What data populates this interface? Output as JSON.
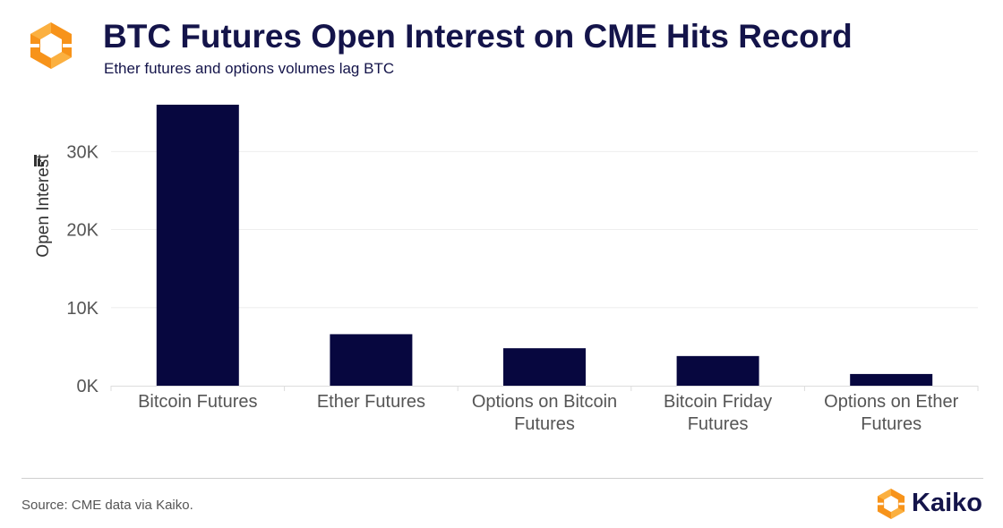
{
  "header": {
    "title": "BTC Futures Open Interest on CME Hits Record",
    "subtitle": "Ether futures and options volumes lag BTC",
    "logo_icon": "kaiko-hexagon-logo-icon"
  },
  "footer": {
    "source": "Source: CME data via Kaiko.",
    "brand": "Kaiko"
  },
  "colors": {
    "bar": "#07073f",
    "title": "#14144a",
    "brand_orange": "#f7931a",
    "brand_orange_light": "#fbb040",
    "grid": "#eeeeee",
    "tick": "#555555"
  },
  "chart_data": {
    "type": "bar",
    "title": "BTC Futures Open Interest on CME Hits Record",
    "subtitle": "Ether futures and options volumes lag BTC",
    "xlabel": "",
    "ylabel": "Open Interest",
    "categories": [
      [
        "Bitcoin Futures"
      ],
      [
        "Ether Futures"
      ],
      [
        "Options on Bitcoin",
        "Futures"
      ],
      [
        "Bitcoin Friday",
        "Futures"
      ],
      [
        "Options on Ether",
        "Futures"
      ]
    ],
    "values": [
      36000,
      6600,
      4800,
      3800,
      1500
    ],
    "ylim": [
      0,
      36000
    ],
    "yticks": [
      0,
      10000,
      20000,
      30000
    ],
    "ytick_labels": [
      "0K",
      "10K",
      "20K",
      "30K"
    ],
    "grid": true,
    "legend": "none"
  }
}
